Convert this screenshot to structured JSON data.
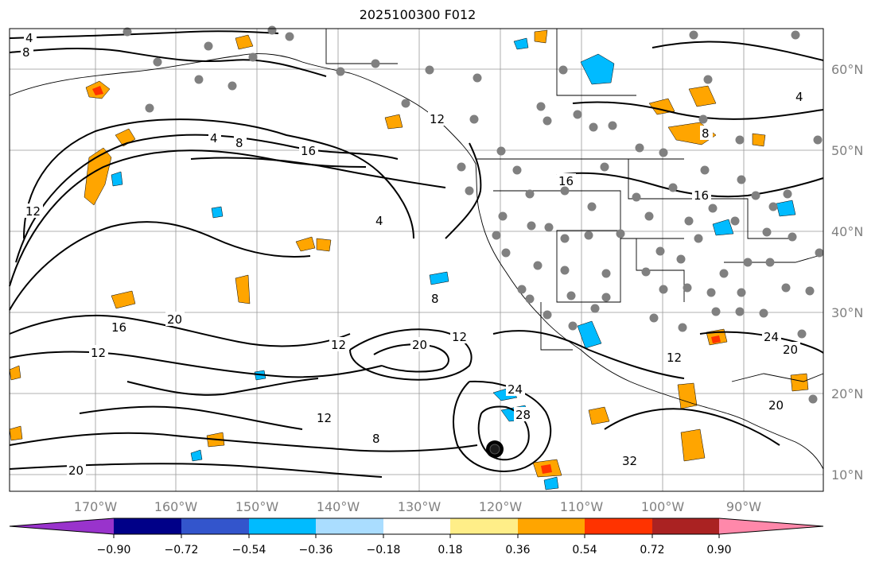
{
  "title": "2025100300 F012",
  "longitude_labels": [
    "170°W",
    "160°W",
    "150°W",
    "140°W",
    "130°W",
    "120°W",
    "110°W",
    "100°W",
    "90°W"
  ],
  "latitude_labels": [
    "60°N",
    "50°N",
    "40°N",
    "30°N",
    "20°N",
    "10°N"
  ],
  "colorbar": {
    "ticks": [
      "−0.90",
      "−0.72",
      "−0.54",
      "−0.36",
      "−0.18",
      "0.18",
      "0.36",
      "0.54",
      "0.72",
      "0.90"
    ],
    "colors": [
      "#9933cc",
      "#000088",
      "#3355cc",
      "#00bbff",
      "#aaddff",
      "#ffffff",
      "#ffee88",
      "#ffa500",
      "#ff3300",
      "#aa2222",
      "#ff88aa"
    ]
  },
  "contour_labels": [
    "4",
    "8",
    "12",
    "16",
    "20",
    "24",
    "28",
    "32"
  ],
  "colors": {
    "negative_shade": "#00bbff",
    "positive_shade": "#ffa500",
    "contour": "#000000",
    "station_dot": "#808080",
    "gridline": "#999999"
  }
}
